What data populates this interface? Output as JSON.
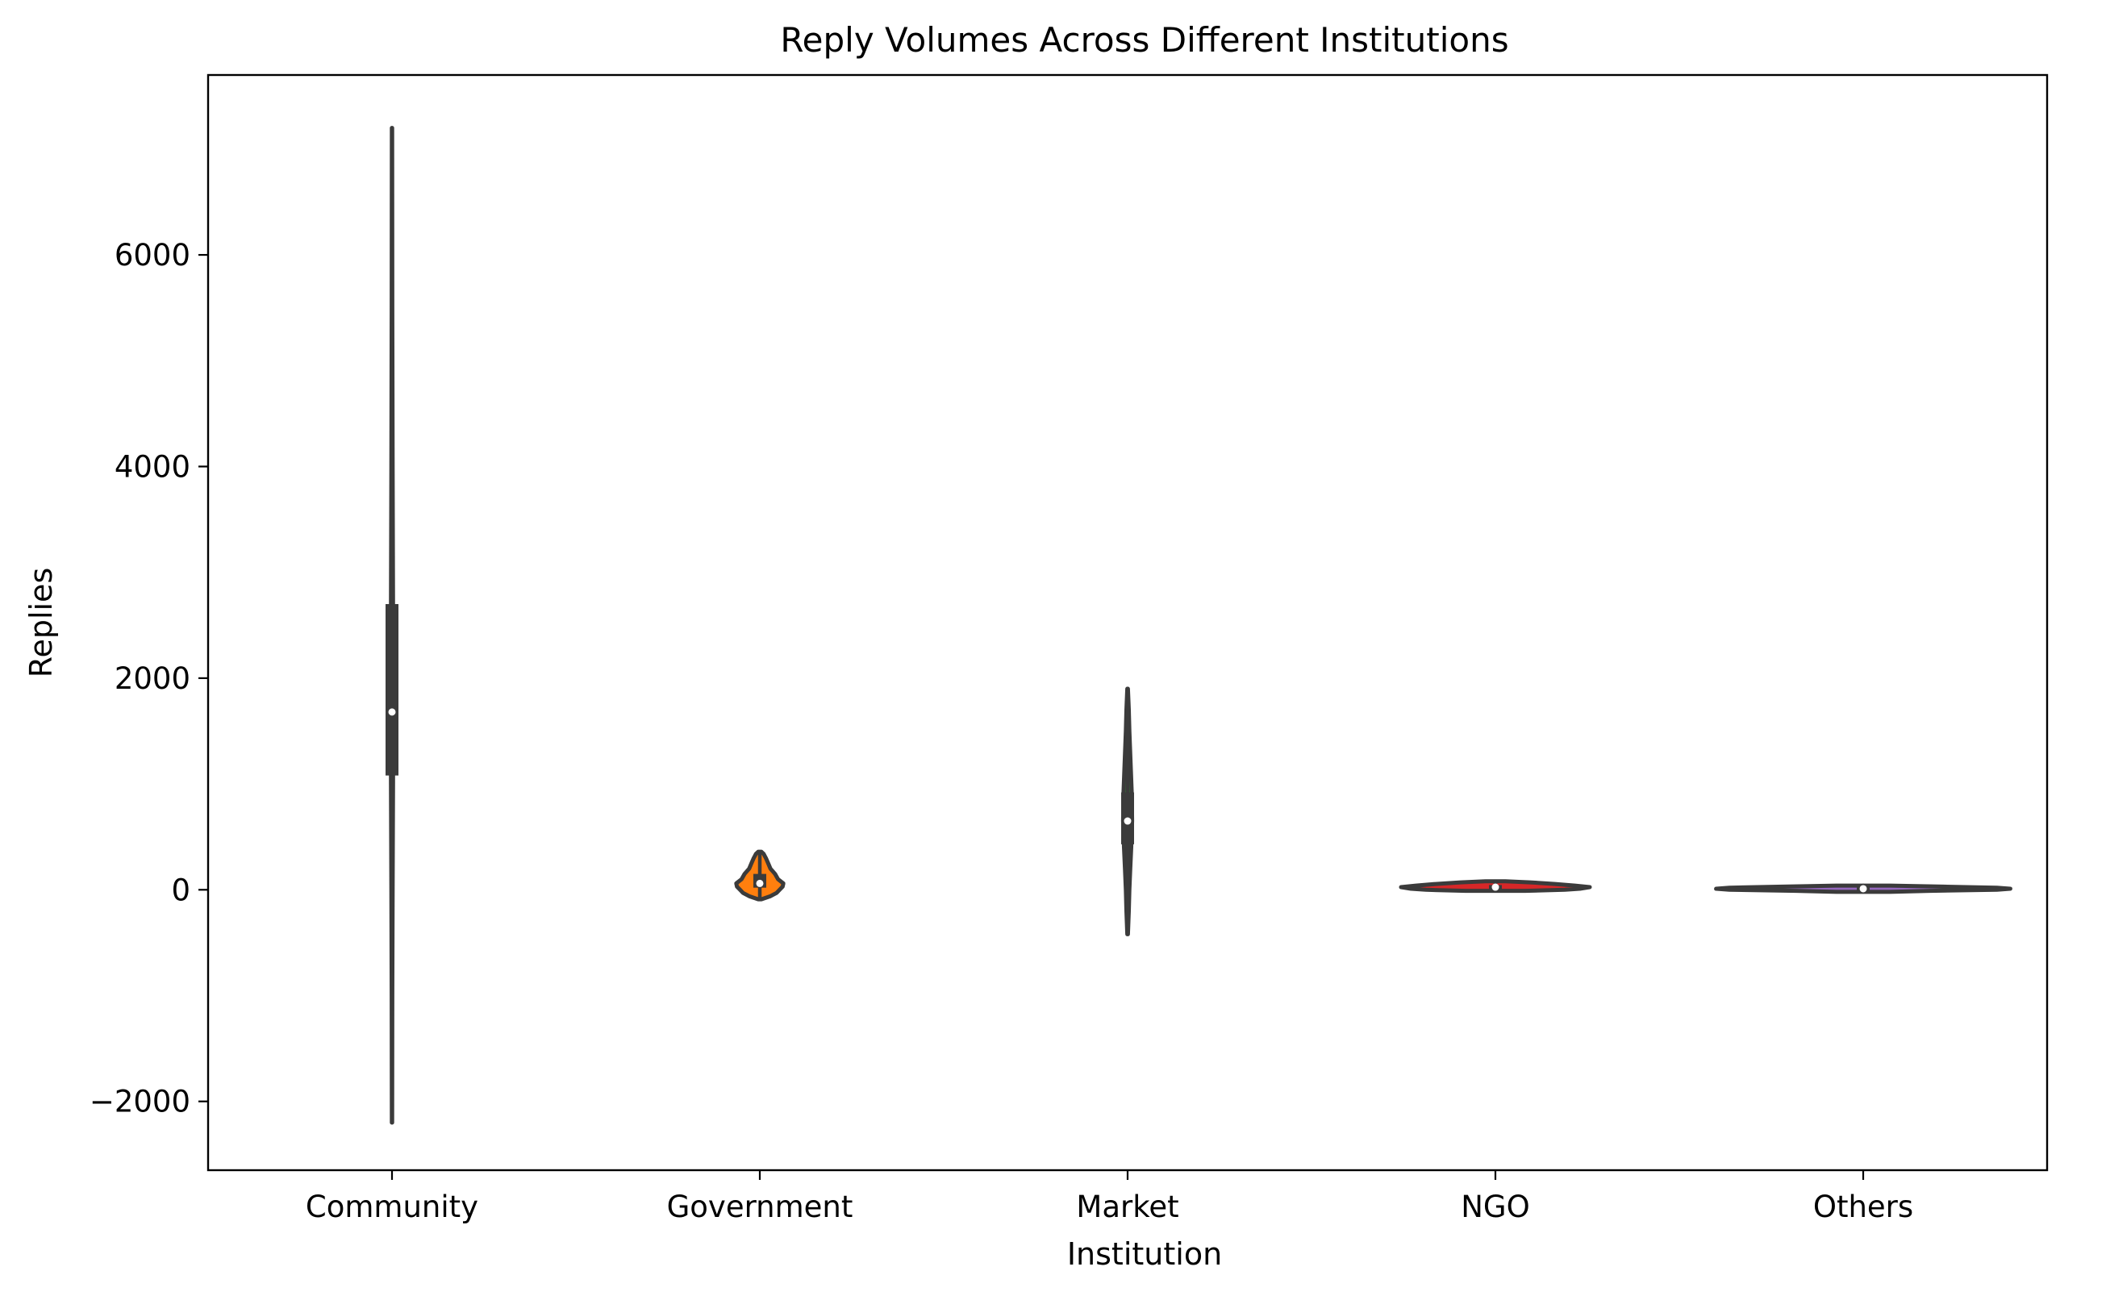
{
  "chart_data": {
    "type": "violin",
    "title": "Reply Volumes Across Different Institutions",
    "xlabel": "Institution",
    "ylabel": "Replies",
    "ylim": [
      -2650,
      7700
    ],
    "yticks": [
      -2000,
      0,
      2000,
      4000,
      6000
    ],
    "ytick_labels": [
      "−2000",
      "0",
      "2000",
      "4000",
      "6000"
    ],
    "grid": false,
    "legend": "none",
    "categories": [
      "Community",
      "Government",
      "Market",
      "NGO",
      "Others"
    ],
    "series": [
      {
        "category": "Community",
        "color": "#1f77b4",
        "min": -2200,
        "max": 7200,
        "q1": 1080,
        "median": 1680,
        "q3": 2700,
        "density": [
          [
            -2200,
            0.4
          ],
          [
            -1000,
            1.0
          ],
          [
            0,
            1.8
          ],
          [
            1000,
            3.0
          ],
          [
            1680,
            3.5
          ],
          [
            2700,
            3.0
          ],
          [
            4000,
            1.8
          ],
          [
            5500,
            1.0
          ],
          [
            7200,
            0.4
          ]
        ]
      },
      {
        "category": "Government",
        "color": "#ff7f0e",
        "min": -90,
        "max": 360,
        "q1": 20,
        "median": 60,
        "q3": 150,
        "density": [
          [
            -90,
            2
          ],
          [
            -60,
            14
          ],
          [
            -30,
            22
          ],
          [
            0,
            26
          ],
          [
            30,
            30
          ],
          [
            60,
            31
          ],
          [
            100,
            24
          ],
          [
            150,
            20
          ],
          [
            200,
            14
          ],
          [
            250,
            11
          ],
          [
            300,
            8
          ],
          [
            340,
            5
          ],
          [
            360,
            2
          ]
        ]
      },
      {
        "category": "Market",
        "color": "#2ca02c",
        "min": -420,
        "max": 1900,
        "q1": 430,
        "median": 650,
        "q3": 920,
        "density": [
          [
            -420,
            0.5
          ],
          [
            -200,
            2
          ],
          [
            0,
            3
          ],
          [
            200,
            4.5
          ],
          [
            400,
            6
          ],
          [
            650,
            7.5
          ],
          [
            900,
            7
          ],
          [
            1200,
            5
          ],
          [
            1500,
            3
          ],
          [
            1700,
            2
          ],
          [
            1900,
            0.5
          ]
        ]
      },
      {
        "category": "NGO",
        "color": "#d62728",
        "min": -10,
        "max": 80,
        "q1": 5,
        "median": 25,
        "q3": 45,
        "density": [
          [
            -10,
            30
          ],
          [
            0,
            70
          ],
          [
            10,
            85
          ],
          [
            25,
            95
          ],
          [
            40,
            80
          ],
          [
            55,
            60
          ],
          [
            70,
            35
          ],
          [
            80,
            10
          ]
        ]
      },
      {
        "category": "Others",
        "color": "#9467bd",
        "min": -20,
        "max": 40,
        "q1": -10,
        "median": 10,
        "q3": 30,
        "density": [
          [
            -20,
            20
          ],
          [
            -10,
            50
          ],
          [
            0,
            100
          ],
          [
            10,
            110
          ],
          [
            20,
            100
          ],
          [
            30,
            60
          ],
          [
            40,
            20
          ]
        ]
      }
    ]
  }
}
